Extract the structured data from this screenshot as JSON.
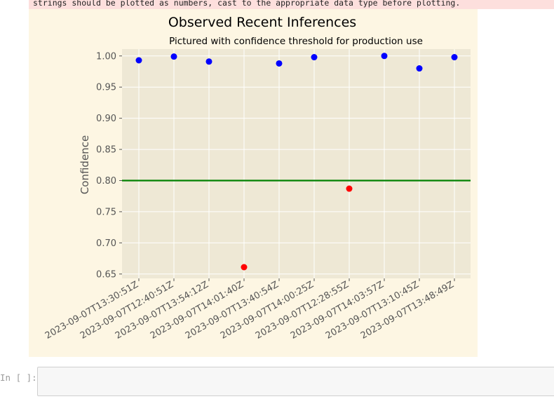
{
  "warning": {
    "text": "strings should be plotted as numbers, cast to the appropriate data type before plotting."
  },
  "cell": {
    "prompt": "In [ ]:",
    "input_value": ""
  },
  "colors": {
    "output_background": "#fdf6e3",
    "plot_background": "#eeE8d5",
    "above_threshold": "#0000ff",
    "below_threshold": "#ff0000",
    "threshold_line": "#008000",
    "axis_text": "#555555",
    "grid": "#ffffff"
  },
  "chart_data": {
    "type": "scatter",
    "title": "Observed Recent Inferences",
    "subtitle": "Pictured with confidence threshold for production use",
    "xlabel": "",
    "ylabel": "Confidence",
    "categories": [
      "2023-09-07T13:30:51Z",
      "2023-09-07T12:40:51Z",
      "2023-09-07T13:54:12Z",
      "2023-09-07T14:01:40Z",
      "2023-09-07T13:40:54Z",
      "2023-09-07T14:00:25Z",
      "2023-09-07T12:28:55Z",
      "2023-09-07T14:03:57Z",
      "2023-09-07T13:10:45Z",
      "2023-09-07T13:48:49Z"
    ],
    "values": [
      0.993,
      0.999,
      0.991,
      0.661,
      0.988,
      0.998,
      0.787,
      1.0,
      0.98,
      0.998
    ],
    "threshold": 0.8,
    "yticks": [
      "0.65",
      "0.70",
      "0.75",
      "0.80",
      "0.85",
      "0.90",
      "0.95",
      "1.00"
    ],
    "ylim": [
      0.643,
      1.011
    ],
    "grid": true
  }
}
